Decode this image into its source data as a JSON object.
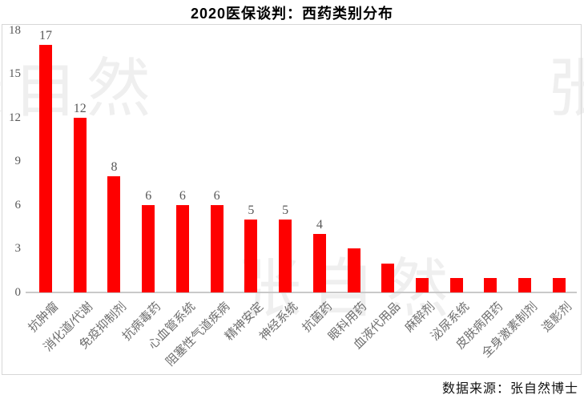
{
  "title": "2020医保谈判：西药类别分布",
  "source_note": "数据来源：张自然博士",
  "watermark": {
    "text": "张自然",
    "color": "#efefef"
  },
  "colors": {
    "bar": "#fe0000",
    "axis_text": "#595959",
    "category_text": "#6e6e6e",
    "baseline": "#c9c9c9",
    "frame_border": "#d7d7d7"
  },
  "chart_data": {
    "type": "bar",
    "title": "2020医保谈判：西药类别分布",
    "xlabel": "",
    "ylabel": "",
    "categories": [
      "抗肿瘤",
      "消化道/代谢",
      "免疫抑制剂",
      "抗病毒药",
      "心血管系统",
      "阻塞性气道疾病",
      "精神安定",
      "神经系统",
      "抗菌药",
      "眼科用药",
      "血液代用品",
      "麻醉剂",
      "泌尿系统",
      "皮肤病用药",
      "全身激素制剂",
      "造影剂"
    ],
    "values": [
      17,
      12,
      8,
      6,
      6,
      6,
      5,
      5,
      4,
      3,
      2,
      1,
      1,
      1,
      1,
      1
    ],
    "data_labels": [
      "17",
      "12",
      "8",
      "6",
      "6",
      "6",
      "5",
      "5",
      "4",
      "",
      "",
      "",
      "",
      "",
      "",
      ""
    ],
    "ylim": [
      0,
      18
    ],
    "yticks": [
      "18",
      "15",
      "12",
      "9",
      "6",
      "3",
      "0"
    ],
    "ytick_values": [
      18,
      15,
      12,
      9,
      6,
      3,
      0
    ],
    "grid": false,
    "legend": false,
    "bar_color": "#fe0000"
  }
}
